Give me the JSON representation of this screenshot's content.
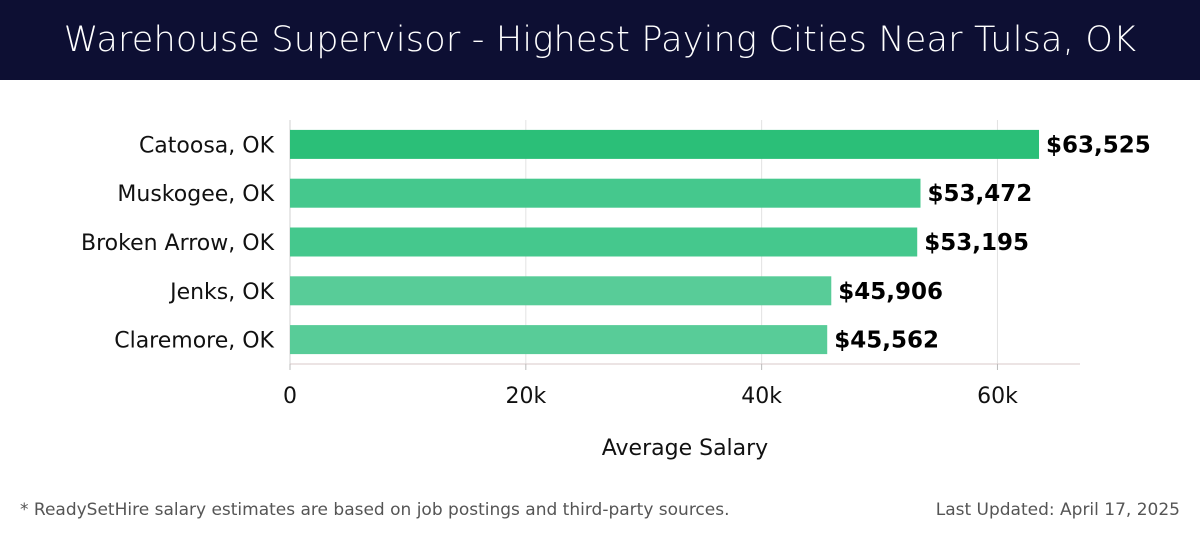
{
  "header": {
    "title": "Warehouse Supervisor - Highest Paying Cities Near Tulsa, OK"
  },
  "chart_data": {
    "type": "bar",
    "orientation": "horizontal",
    "categories": [
      "Catoosa, OK",
      "Muskogee, OK",
      "Broken Arrow, OK",
      "Jenks, OK",
      "Claremore, OK"
    ],
    "values": [
      63525,
      53472,
      53195,
      45906,
      45562
    ],
    "data_labels": [
      "$63,525",
      "$53,472",
      "$53,195",
      "$45,906",
      "$45,562"
    ],
    "xlabel": "Average Salary",
    "ylabel": "",
    "xlim": [
      0,
      67000
    ],
    "xticks": [
      0,
      20000,
      40000,
      60000
    ],
    "xtick_labels": [
      "0",
      "20k",
      "40k",
      "60k"
    ],
    "grid": true,
    "colors": {
      "top_bar": "#2bbf78",
      "other_bars": "#45c88d",
      "lowest_bars": "#58cc98",
      "header_bg": "#0d0f33"
    }
  },
  "footer": {
    "note": "* ReadySetHire salary estimates are based on job postings and third-party sources.",
    "updated": "Last Updated: April 17, 2025"
  }
}
